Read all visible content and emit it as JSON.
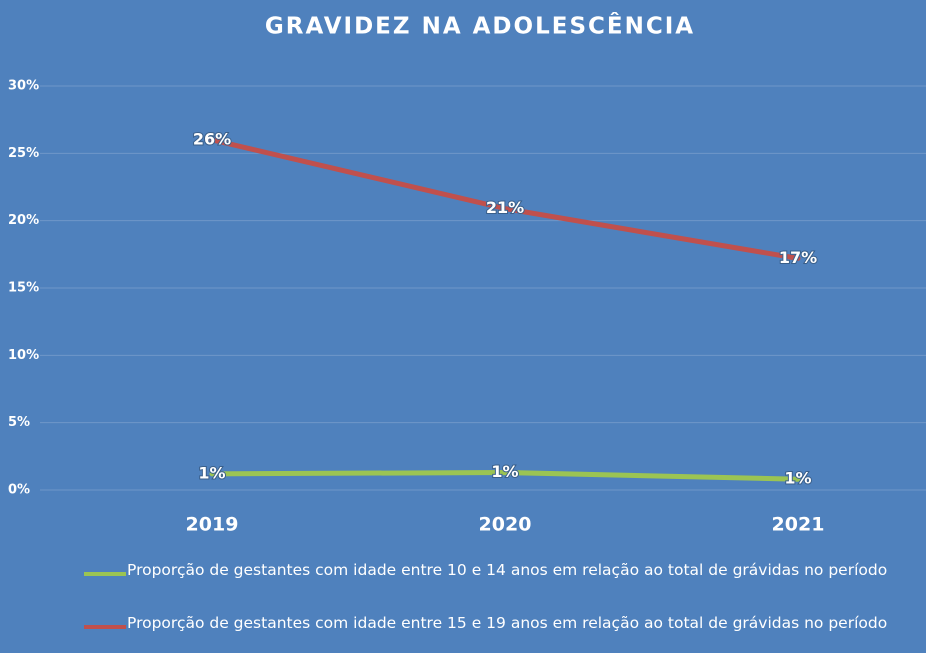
{
  "chart_data": {
    "type": "line",
    "title": "GRAVIDEZ NA ADOLESCÊNCIA",
    "categories": [
      "2019",
      "2020",
      "2021"
    ],
    "series": [
      {
        "name": "Proporção de gestantes com idade entre 10 e 14 anos em relação ao total de grávidas no período",
        "color": "#9bc453",
        "values": [
          1.2,
          1.3,
          0.8
        ],
        "value_labels": [
          "1%",
          "1%",
          "1%"
        ]
      },
      {
        "name": "Proporção de gestantes com idade entre 15 e 19 anos em relação ao total de grávidas no período",
        "color": "#c0504d",
        "values": [
          26.0,
          20.9,
          17.2
        ],
        "value_labels": [
          "26%",
          "21%",
          "17%"
        ]
      }
    ],
    "ylim": [
      0,
      30
    ],
    "yticks": [
      {
        "value": 0,
        "label": "0%"
      },
      {
        "value": 5,
        "label": "5%"
      },
      {
        "value": 10,
        "label": "10%"
      },
      {
        "value": 15,
        "label": "15%"
      },
      {
        "value": 20,
        "label": "20%"
      },
      {
        "value": 25,
        "label": "25%"
      },
      {
        "value": 30,
        "label": "30%"
      }
    ],
    "grid": true
  }
}
